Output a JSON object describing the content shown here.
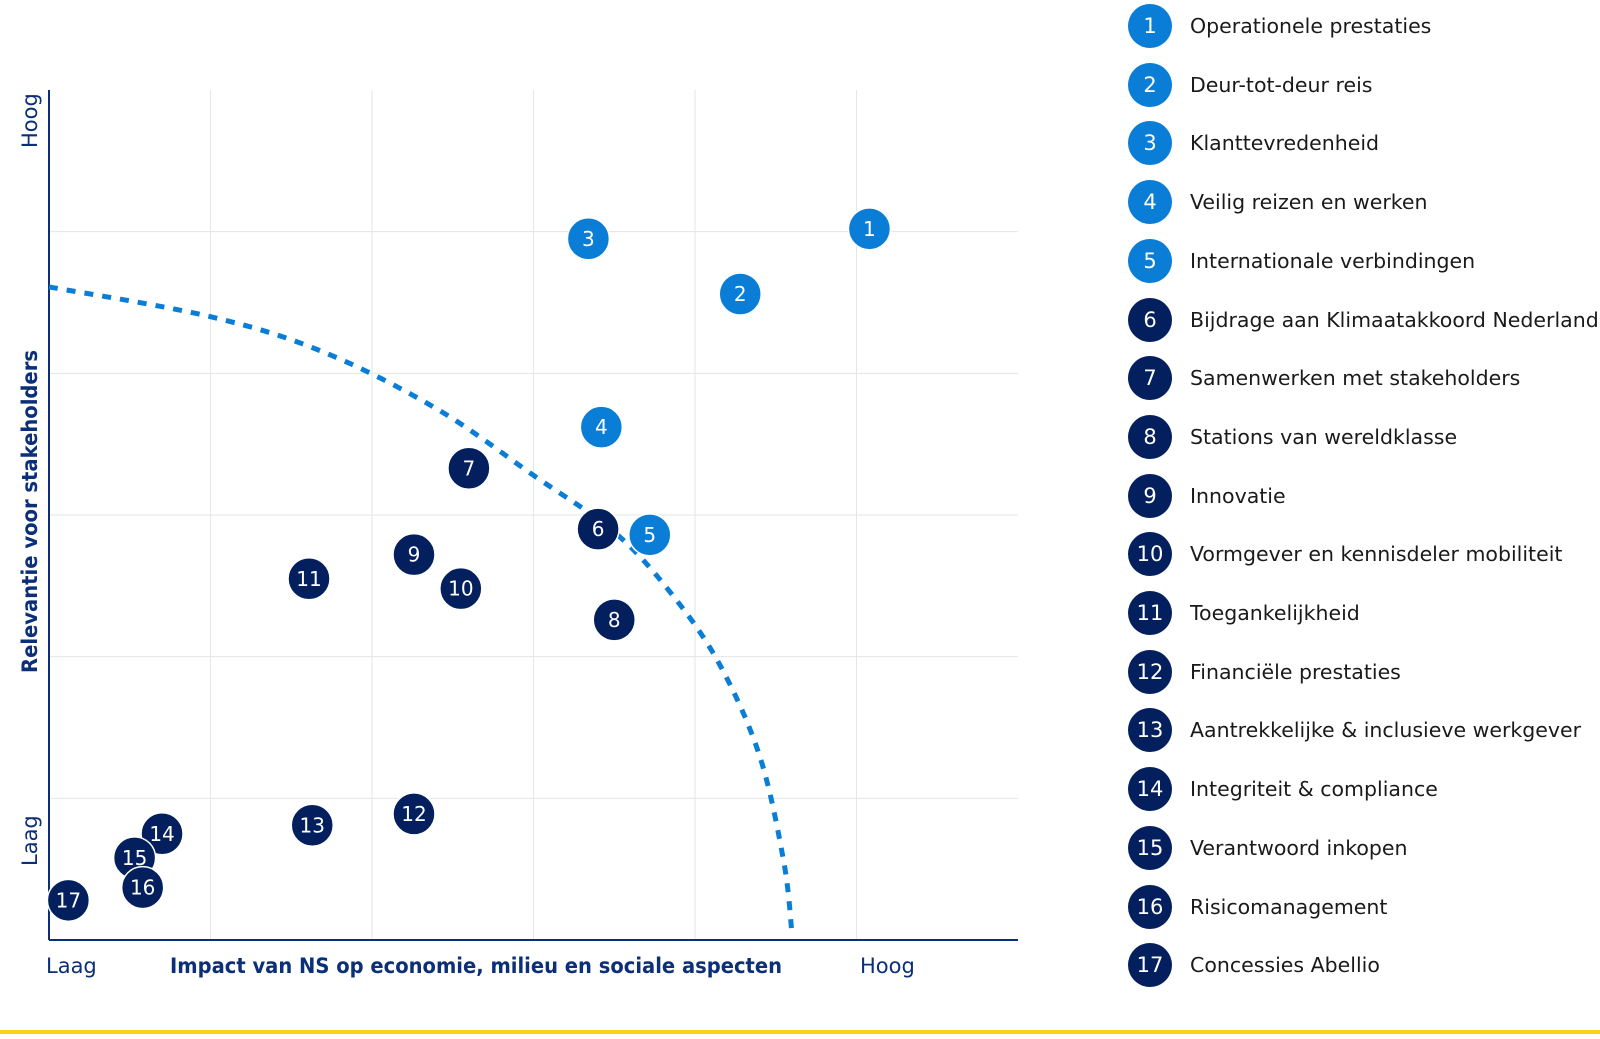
{
  "colors": {
    "light_blue": "#0a7dd6",
    "dark_navy": "#031f5e",
    "axis": "#0b2f78",
    "grid": "#e3e6ea",
    "curve": "#0a7dd6",
    "bottom_line": "#fcd116"
  },
  "chart_data": {
    "type": "scatter",
    "title": "",
    "xlabel": "Impact van NS op economie, milieu en sociale aspecten",
    "ylabel": "Relevantie voor stakeholders",
    "x_low_label": "Laag",
    "x_high_label": "Hoog",
    "y_low_label": "Laag",
    "y_high_label": "Hoog",
    "xlim": [
      0,
      6
    ],
    "ylim": [
      0,
      6
    ],
    "grid": true,
    "legend_position": "right",
    "points": [
      {
        "id": "1",
        "x": 5.08,
        "y": 5.02,
        "group": "light"
      },
      {
        "id": "2",
        "x": 4.28,
        "y": 4.56,
        "group": "light"
      },
      {
        "id": "3",
        "x": 3.34,
        "y": 4.95,
        "group": "light"
      },
      {
        "id": "4",
        "x": 3.42,
        "y": 3.62,
        "group": "light"
      },
      {
        "id": "5",
        "x": 3.72,
        "y": 2.86,
        "group": "light"
      },
      {
        "id": "6",
        "x": 3.4,
        "y": 2.9,
        "group": "dark"
      },
      {
        "id": "7",
        "x": 2.6,
        "y": 3.33,
        "group": "dark"
      },
      {
        "id": "8",
        "x": 3.5,
        "y": 2.26,
        "group": "dark"
      },
      {
        "id": "9",
        "x": 2.26,
        "y": 2.72,
        "group": "dark"
      },
      {
        "id": "10",
        "x": 2.55,
        "y": 2.48,
        "group": "dark"
      },
      {
        "id": "11",
        "x": 1.61,
        "y": 2.55,
        "group": "dark"
      },
      {
        "id": "12",
        "x": 2.26,
        "y": 0.89,
        "group": "dark"
      },
      {
        "id": "13",
        "x": 1.63,
        "y": 0.81,
        "group": "dark"
      },
      {
        "id": "14",
        "x": 0.7,
        "y": 0.75,
        "group": "dark"
      },
      {
        "id": "15",
        "x": 0.53,
        "y": 0.58,
        "group": "dark"
      },
      {
        "id": "16",
        "x": 0.58,
        "y": 0.37,
        "group": "dark"
      },
      {
        "id": "17",
        "x": 0.12,
        "y": 0.28,
        "group": "dark"
      }
    ],
    "threshold_curve": [
      [
        0.0,
        4.61
      ],
      [
        1.0,
        4.4
      ],
      [
        1.7,
        4.15
      ],
      [
        2.4,
        3.75
      ],
      [
        3.0,
        3.28
      ],
      [
        3.5,
        2.88
      ],
      [
        3.85,
        2.45
      ],
      [
        4.15,
        1.95
      ],
      [
        4.4,
        1.3
      ],
      [
        4.55,
        0.55
      ],
      [
        4.6,
        0.05
      ]
    ]
  },
  "legend": [
    {
      "num": "1",
      "label": "Operationele prestaties",
      "group": "light"
    },
    {
      "num": "2",
      "label": "Deur-tot-deur reis",
      "group": "light"
    },
    {
      "num": "3",
      "label": "Klanttevredenheid",
      "group": "light"
    },
    {
      "num": "4",
      "label": "Veilig reizen en werken",
      "group": "light"
    },
    {
      "num": "5",
      "label": "Internationale verbindingen",
      "group": "light"
    },
    {
      "num": "6",
      "label": "Bijdrage aan Klimaatakkoord Nederland",
      "group": "dark"
    },
    {
      "num": "7",
      "label": "Samenwerken met stakeholders",
      "group": "dark"
    },
    {
      "num": "8",
      "label": "Stations van wereldklasse",
      "group": "dark"
    },
    {
      "num": "9",
      "label": "Innovatie",
      "group": "dark"
    },
    {
      "num": "10",
      "label": "Vormgever en kennisdeler mobiliteit",
      "group": "dark"
    },
    {
      "num": "11",
      "label": "Toegankelijkheid",
      "group": "dark"
    },
    {
      "num": "12",
      "label": "Financiële prestaties",
      "group": "dark"
    },
    {
      "num": "13",
      "label": "Aantrekkelijke & inclusieve werkgever",
      "group": "dark"
    },
    {
      "num": "14",
      "label": "Integriteit & compliance",
      "group": "dark"
    },
    {
      "num": "15",
      "label": "Verantwoord inkopen",
      "group": "dark"
    },
    {
      "num": "16",
      "label": "Risicomanagement",
      "group": "dark"
    },
    {
      "num": "17",
      "label": "Concessies Abellio",
      "group": "dark"
    }
  ]
}
